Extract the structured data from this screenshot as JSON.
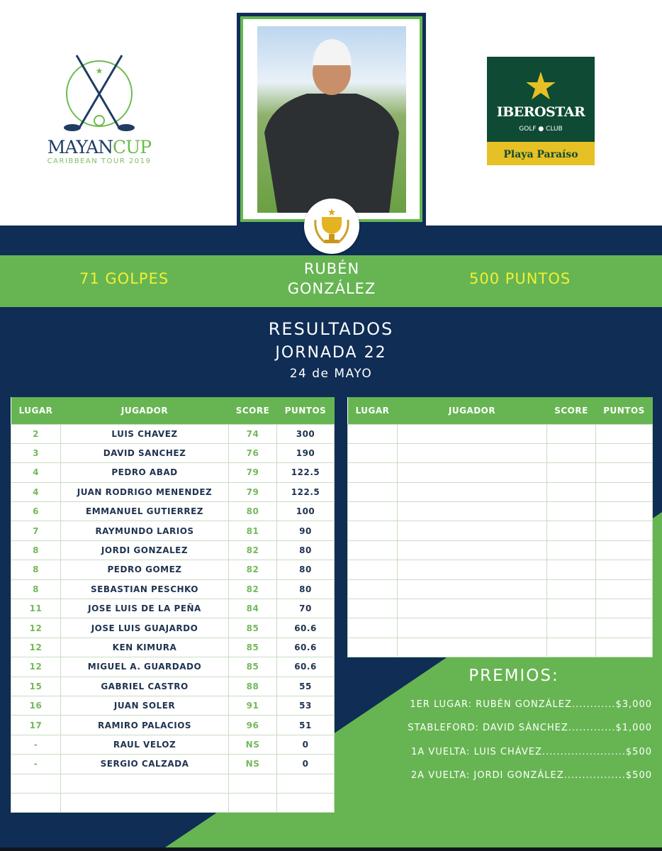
{
  "logos": {
    "left_brand": "MAYAN",
    "left_brand_accent": "CUP",
    "left_sub": "CARIBBEAN TOUR 2019",
    "right_name": "IBEROSTAR",
    "right_sub": "GOLF ● CLUB",
    "right_location": "Playa Paraíso"
  },
  "colors": {
    "navy": "#0f2d55",
    "green": "#66b552",
    "yellow": "#f0f035",
    "gold": "#e6c025"
  },
  "winner": {
    "strokes": "71 GOLPES",
    "first_name": "RUBÉN",
    "last_name": "GONZÁLEZ",
    "points": "500 PUNTOS"
  },
  "header": {
    "title": "RESULTADOS",
    "round": "JORNADA 22",
    "date": "24 de MAYO"
  },
  "table": {
    "columns": [
      "LUGAR",
      "JUGADOR",
      "SCORE",
      "PUNTOS"
    ],
    "rows": [
      [
        "2",
        "LUIS CHAVEZ",
        "74",
        "300"
      ],
      [
        "3",
        "DAVID SANCHEZ",
        "76",
        "190"
      ],
      [
        "4",
        "PEDRO ABAD",
        "79",
        "122.5"
      ],
      [
        "4",
        "JUAN RODRIGO MENENDEZ",
        "79",
        "122.5"
      ],
      [
        "6",
        "EMMANUEL GUTIERREZ",
        "80",
        "100"
      ],
      [
        "7",
        "RAYMUNDO LARIOS",
        "81",
        "90"
      ],
      [
        "8",
        "JORDI GONZALEZ",
        "82",
        "80"
      ],
      [
        "8",
        "PEDRO GOMEZ",
        "82",
        "80"
      ],
      [
        "8",
        "SEBASTIAN PESCHKO",
        "82",
        "80"
      ],
      [
        "11",
        "JOSE LUIS DE LA PEÑA",
        "84",
        "70"
      ],
      [
        "12",
        "JOSE LUIS GUAJARDO",
        "85",
        "60.6"
      ],
      [
        "12",
        "KEN KIMURA",
        "85",
        "60.6"
      ],
      [
        "12",
        "MIGUEL A. GUARDADO",
        "85",
        "60.6"
      ],
      [
        "15",
        "GABRIEL CASTRO",
        "88",
        "55"
      ],
      [
        "16",
        "JUAN SOLER",
        "91",
        "53"
      ],
      [
        "17",
        "RAMIRO PALACIOS",
        "96",
        "51"
      ],
      [
        "-",
        "RAUL VELOZ",
        "NS",
        "0"
      ],
      [
        "-",
        "SERGIO CALZADA",
        "NS",
        "0"
      ],
      [
        "",
        "",
        "",
        ""
      ],
      [
        "",
        "",
        "",
        ""
      ]
    ]
  },
  "table2": {
    "columns": [
      "LUGAR",
      "JUGADOR",
      "SCORE",
      "PUNTOS"
    ]
  },
  "premios": {
    "title": "PREMIOS:",
    "items": [
      "1ER LUGAR: RUBÉN GONZÁLEZ............$3,000",
      "STABLEFORD: DAVID SÁNCHEZ.............$1,000",
      "1A VUELTA: LUIS CHÁVEZ.......................$500",
      "2A VUELTA: JORDI GONZÁLEZ.................$500"
    ]
  }
}
